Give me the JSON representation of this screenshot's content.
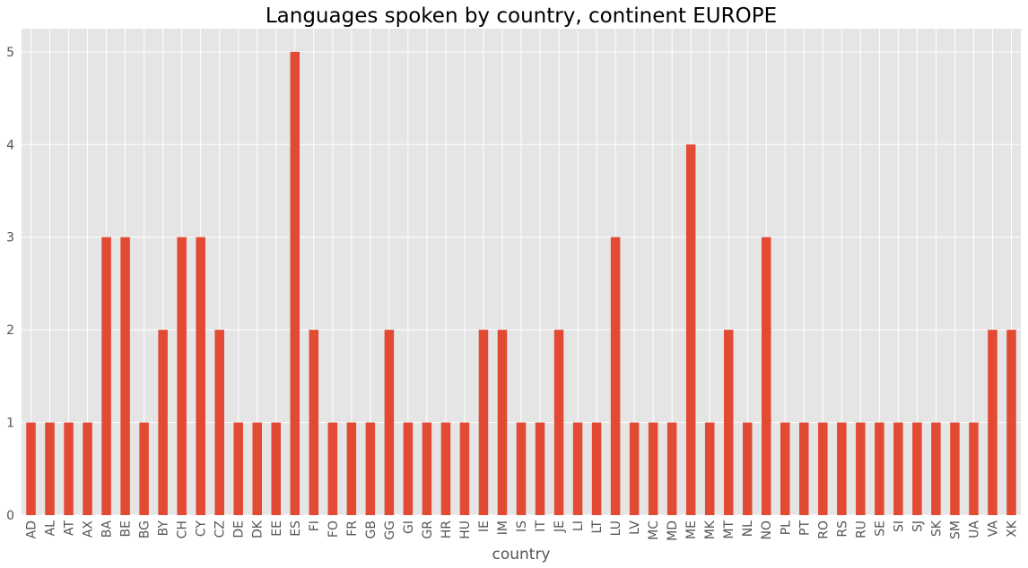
{
  "chart_data": {
    "type": "bar",
    "title": "Languages spoken by country, continent EUROPE",
    "xlabel": "country",
    "ylabel": "",
    "categories": [
      "AD",
      "AL",
      "AT",
      "AX",
      "BA",
      "BE",
      "BG",
      "BY",
      "CH",
      "CY",
      "CZ",
      "DE",
      "DK",
      "EE",
      "ES",
      "FI",
      "FO",
      "FR",
      "GB",
      "GG",
      "GI",
      "GR",
      "HR",
      "HU",
      "IE",
      "IM",
      "IS",
      "IT",
      "JE",
      "LI",
      "LT",
      "LU",
      "LV",
      "MC",
      "MD",
      "ME",
      "MK",
      "MT",
      "NL",
      "NO",
      "PL",
      "PT",
      "RO",
      "RS",
      "RU",
      "SE",
      "SI",
      "SJ",
      "SK",
      "SM",
      "UA",
      "VA",
      "XK"
    ],
    "values": [
      1,
      1,
      1,
      1,
      3,
      3,
      1,
      2,
      3,
      3,
      2,
      1,
      1,
      1,
      5,
      2,
      1,
      1,
      1,
      2,
      1,
      1,
      1,
      1,
      2,
      2,
      1,
      1,
      2,
      1,
      1,
      3,
      1,
      1,
      1,
      4,
      1,
      2,
      1,
      3,
      1,
      1,
      1,
      1,
      1,
      1,
      1,
      1,
      1,
      1,
      1,
      2,
      2
    ],
    "ylim": [
      0,
      5.25
    ],
    "yticks": [
      0,
      1,
      2,
      3,
      4,
      5
    ],
    "grid": true,
    "colors": {
      "bar": "#E24A33",
      "plot_background": "#E5E5E5",
      "grid": "#FFFFFF",
      "tick_text": "#555555"
    }
  }
}
